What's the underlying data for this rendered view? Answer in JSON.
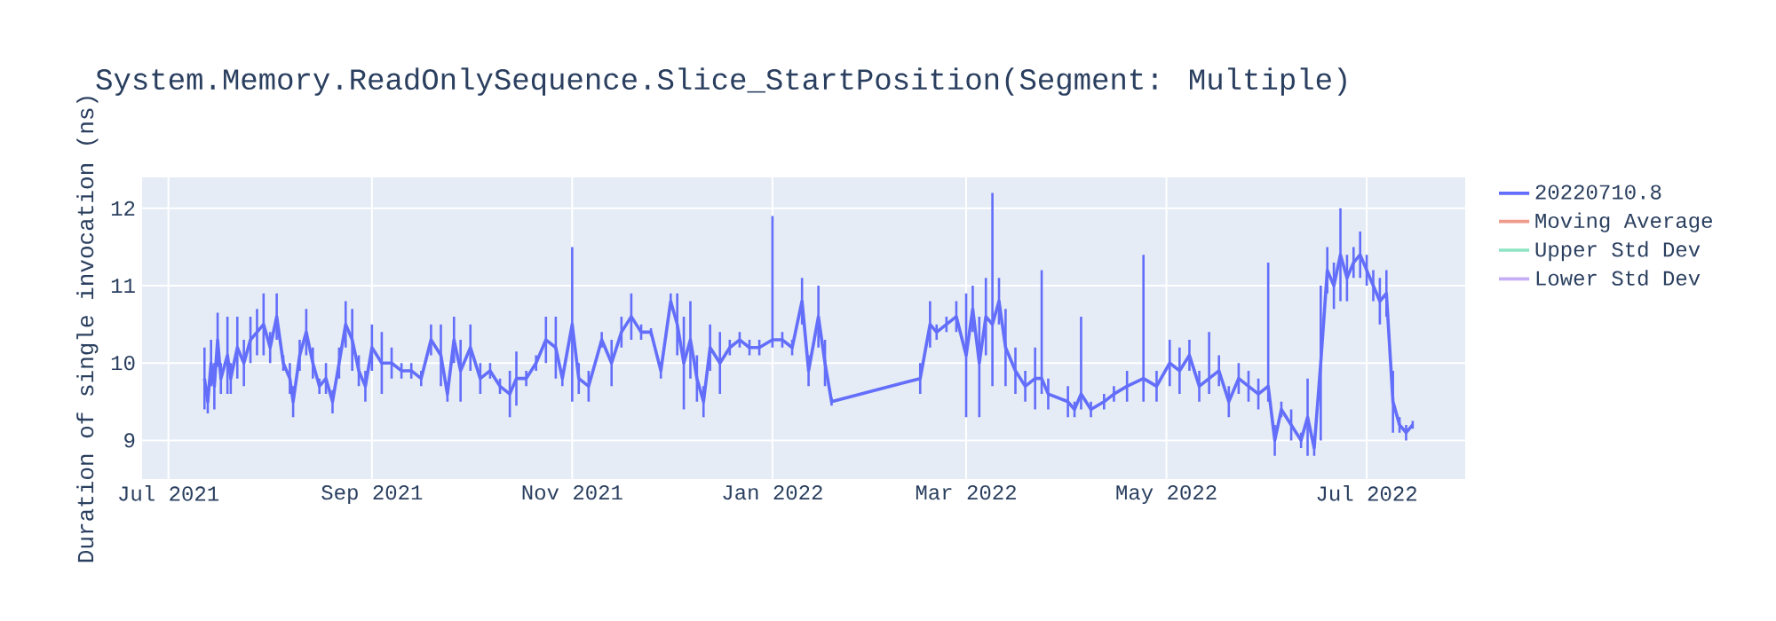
{
  "chart_data": {
    "type": "line",
    "title": "System.Memory.ReadOnlySequence.Slice_StartPosition(Segment: Multiple)",
    "ylabel": "Duration of single invocation (ns)",
    "xlim": [
      "2021-06-23",
      "2022-07-31"
    ],
    "xticks": [
      {
        "value": "2021-07-01",
        "label": "Jul 2021"
      },
      {
        "value": "2021-09-01",
        "label": "Sep 2021"
      },
      {
        "value": "2021-11-01",
        "label": "Nov 2021"
      },
      {
        "value": "2022-01-01",
        "label": "Jan 2022"
      },
      {
        "value": "2022-03-01",
        "label": "Mar 2022"
      },
      {
        "value": "2022-05-01",
        "label": "May 2022"
      },
      {
        "value": "2022-07-01",
        "label": "Jul 2022"
      }
    ],
    "ylim": [
      8.5,
      12.4
    ],
    "yticks": [
      9,
      10,
      11,
      12
    ],
    "grid": true,
    "legend": "top right",
    "line_style": "solid",
    "series": [
      {
        "name": "20220710.8",
        "color": "#636efa",
        "x": [
          "2021-07-12",
          "2021-07-13",
          "2021-07-14",
          "2021-07-15",
          "2021-07-16",
          "2021-07-17",
          "2021-07-19",
          "2021-07-20",
          "2021-07-22",
          "2021-07-24",
          "2021-07-26",
          "2021-07-28",
          "2021-07-30",
          "2021-08-01",
          "2021-08-03",
          "2021-08-05",
          "2021-08-07",
          "2021-08-08",
          "2021-08-10",
          "2021-08-12",
          "2021-08-14",
          "2021-08-16",
          "2021-08-18",
          "2021-08-20",
          "2021-08-22",
          "2021-08-24",
          "2021-08-26",
          "2021-08-28",
          "2021-08-30",
          "2021-09-01",
          "2021-09-04",
          "2021-09-07",
          "2021-09-10",
          "2021-09-13",
          "2021-09-16",
          "2021-09-19",
          "2021-09-22",
          "2021-09-24",
          "2021-09-26",
          "2021-09-28",
          "2021-10-01",
          "2021-10-04",
          "2021-10-07",
          "2021-10-10",
          "2021-10-13",
          "2021-10-15",
          "2021-10-18",
          "2021-10-21",
          "2021-10-24",
          "2021-10-27",
          "2021-10-29",
          "2021-11-01",
          "2021-11-03",
          "2021-11-06",
          "2021-11-10",
          "2021-11-13",
          "2021-11-16",
          "2021-11-19",
          "2021-11-22",
          "2021-11-25",
          "2021-11-28",
          "2021-12-01",
          "2021-12-03",
          "2021-12-05",
          "2021-12-07",
          "2021-12-09",
          "2021-12-11",
          "2021-12-13",
          "2021-12-16",
          "2021-12-19",
          "2021-12-22",
          "2021-12-25",
          "2021-12-28",
          "2022-01-01",
          "2022-01-04",
          "2022-01-07",
          "2022-01-10",
          "2022-01-12",
          "2022-01-15",
          "2022-01-17",
          "2022-01-19",
          "2022-02-15",
          "2022-02-18",
          "2022-02-20",
          "2022-02-23",
          "2022-02-26",
          "2022-03-01",
          "2022-03-03",
          "2022-03-05",
          "2022-03-07",
          "2022-03-09",
          "2022-03-11",
          "2022-03-13",
          "2022-03-16",
          "2022-03-19",
          "2022-03-22",
          "2022-03-24",
          "2022-03-26",
          "2022-04-01",
          "2022-04-03",
          "2022-04-05",
          "2022-04-08",
          "2022-04-12",
          "2022-04-15",
          "2022-04-19",
          "2022-04-24",
          "2022-04-28",
          "2022-05-02",
          "2022-05-05",
          "2022-05-08",
          "2022-05-11",
          "2022-05-14",
          "2022-05-17",
          "2022-05-20",
          "2022-05-23",
          "2022-05-26",
          "2022-05-29",
          "2022-06-01",
          "2022-06-03",
          "2022-06-05",
          "2022-06-08",
          "2022-06-11",
          "2022-06-13",
          "2022-06-15",
          "2022-06-17",
          "2022-06-19",
          "2022-06-21",
          "2022-06-23",
          "2022-06-25",
          "2022-06-27",
          "2022-06-29",
          "2022-07-01",
          "2022-07-03",
          "2022-07-05",
          "2022-07-07",
          "2022-07-09",
          "2022-07-11",
          "2022-07-13",
          "2022-07-15"
        ],
        "values": [
          9.8,
          9.5,
          10.0,
          9.7,
          10.3,
          9.8,
          10.1,
          9.8,
          10.2,
          10.0,
          10.3,
          10.4,
          10.5,
          10.2,
          10.6,
          10.0,
          9.8,
          9.5,
          10.1,
          10.4,
          10.0,
          9.7,
          9.8,
          9.5,
          10.0,
          10.5,
          10.3,
          9.9,
          9.7,
          10.2,
          10.0,
          10.0,
          9.9,
          9.9,
          9.8,
          10.3,
          10.1,
          9.6,
          10.3,
          9.9,
          10.2,
          9.8,
          9.9,
          9.7,
          9.6,
          9.8,
          9.8,
          10.0,
          10.3,
          10.2,
          9.8,
          10.5,
          9.8,
          9.7,
          10.3,
          10.0,
          10.4,
          10.6,
          10.4,
          10.4,
          9.9,
          10.8,
          10.5,
          10.0,
          10.3,
          9.8,
          9.5,
          10.2,
          10.0,
          10.2,
          10.3,
          10.2,
          10.2,
          10.3,
          10.3,
          10.2,
          10.8,
          9.9,
          10.6,
          10.0,
          9.5,
          9.8,
          10.5,
          10.4,
          10.5,
          10.6,
          10.1,
          10.7,
          10.0,
          10.6,
          10.5,
          10.8,
          10.2,
          9.9,
          9.7,
          9.8,
          9.8,
          9.6,
          9.5,
          9.4,
          9.6,
          9.4,
          9.5,
          9.6,
          9.7,
          9.8,
          9.7,
          10.0,
          9.9,
          10.1,
          9.7,
          9.8,
          9.9,
          9.5,
          9.8,
          9.7,
          9.6,
          9.7,
          9.0,
          9.4,
          9.2,
          9.0,
          9.3,
          8.9,
          10.0,
          11.2,
          11.0,
          11.4,
          11.1,
          11.3,
          11.4,
          11.2,
          11.0,
          10.8,
          10.9,
          9.5,
          9.2,
          9.1,
          9.2
        ],
        "errors": [
          0.4,
          0.15,
          0.3,
          0.3,
          0.35,
          0.2,
          0.5,
          0.2,
          0.4,
          0.3,
          0.3,
          0.3,
          0.4,
          0.2,
          0.3,
          0.1,
          0.2,
          0.2,
          0.2,
          0.3,
          0.2,
          0.1,
          0.2,
          0.15,
          0.2,
          0.3,
          0.4,
          0.2,
          0.2,
          0.3,
          0.4,
          0.2,
          0.1,
          0.1,
          0.1,
          0.2,
          0.4,
          0.1,
          0.3,
          0.4,
          0.3,
          0.2,
          0.1,
          0.1,
          0.3,
          0.35,
          0.1,
          0.1,
          0.3,
          0.4,
          0.1,
          1.0,
          0.2,
          0.2,
          0.1,
          0.3,
          0.2,
          0.3,
          0.1,
          0.05,
          0.1,
          0.1,
          0.4,
          0.6,
          0.5,
          0.3,
          0.2,
          0.3,
          0.4,
          0.1,
          0.1,
          0.1,
          0.1,
          [
            10.2,
            11.9
          ],
          0.1,
          0.1,
          0.3,
          0.2,
          0.4,
          0.3,
          0.05,
          0.2,
          0.3,
          0.1,
          0.1,
          0.2,
          0.8,
          0.3,
          [
            9.3,
            10.6
          ],
          0.5,
          [
            9.7,
            12.2
          ],
          0.3,
          0.5,
          0.3,
          0.2,
          0.4,
          [
            9.6,
            11.2
          ],
          0.2,
          0.2,
          0.1,
          [
            9.4,
            10.6
          ],
          0.1,
          0.1,
          0.1,
          0.2,
          [
            9.5,
            11.4
          ],
          0.2,
          0.3,
          0.3,
          0.2,
          0.2,
          [
            9.6,
            10.4
          ],
          0.2,
          0.2,
          0.2,
          0.2,
          0.2,
          [
            9.5,
            11.3
          ],
          0.2,
          0.1,
          0.2,
          0.1,
          0.5,
          0.1,
          1.0,
          0.3,
          0.3,
          [
            10.8,
            12.0
          ],
          0.3,
          0.2,
          0.3,
          0.2,
          0.2,
          0.3,
          0.3,
          0.4,
          0.1,
          0.1,
          0.05
        ]
      },
      {
        "name": "Moving Average",
        "color": "#ef9a8a"
      },
      {
        "name": "Upper Std Dev",
        "color": "#8ee4c5"
      },
      {
        "name": "Lower Std Dev",
        "color": "#c5aef5"
      }
    ]
  }
}
